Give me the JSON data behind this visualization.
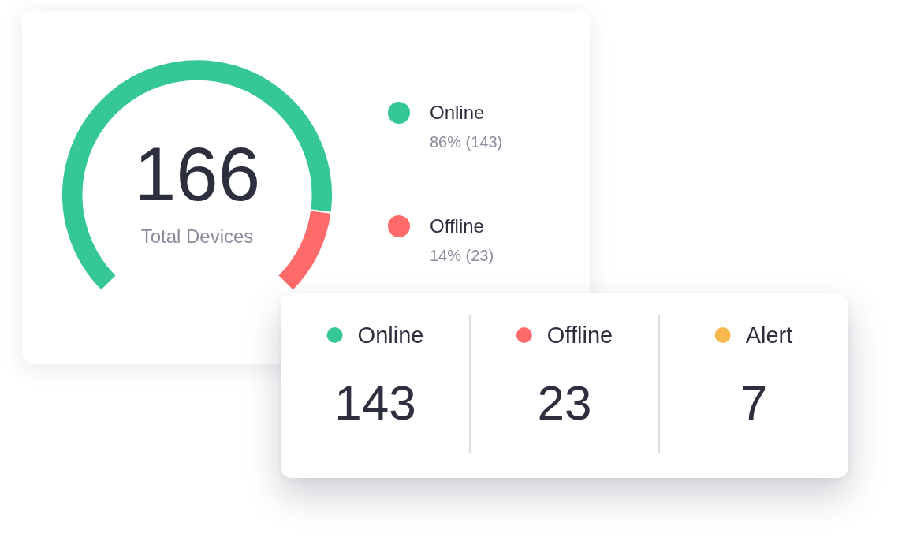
{
  "chart_data": [
    {
      "type": "donut",
      "categories": [
        "Online",
        "Offline"
      ],
      "values": [
        143,
        23
      ],
      "colors": [
        "#35c895",
        "#ff6a6a"
      ],
      "value_labels": [
        "86% (143)",
        "14% (23)"
      ],
      "legend": "right",
      "annotations": [
        "166",
        "Total Devices"
      ]
    },
    {
      "type": "other",
      "series": [
        {
          "name": "Online",
          "color": "#35c895",
          "values": [
            143
          ]
        },
        {
          "name": "Offline",
          "color": "#ff6a6a",
          "values": [
            23
          ]
        },
        {
          "name": "Alert",
          "color": "#f7b84e",
          "values": [
            7
          ]
        }
      ],
      "data_labels": true
    }
  ]
}
